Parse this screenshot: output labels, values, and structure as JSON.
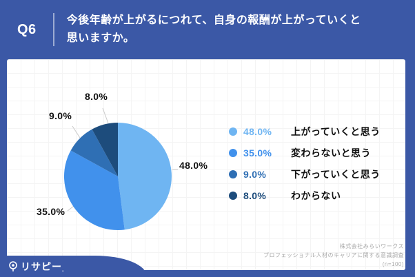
{
  "colors": {
    "frame_blue": "#3B58A6",
    "leader_line": "#c9c9c9",
    "credit_gray": "#a8a8a8"
  },
  "header": {
    "q_number": "Q6",
    "question_lines": [
      "今後年齢が上がるにつれて、自身の報酬が上がっていくと",
      "思いますか。"
    ]
  },
  "chart_data": {
    "type": "pie",
    "title": "今後年齢が上がるにつれて、自身の報酬が上がっていくと思いますか。",
    "categories": [
      "上がっていくと思う",
      "変わらないと思う",
      "下がっていくと思う",
      "わからない"
    ],
    "values": [
      48.0,
      35.0,
      9.0,
      8.0
    ],
    "unit": "%",
    "point_labels": [
      "48.0%",
      "35.0%",
      "9.0%",
      "8.0%"
    ],
    "colors": [
      "#6FB5F2",
      "#4191EC",
      "#2F6FB4",
      "#1D4C7C"
    ],
    "start_angle": "top",
    "direction": "clockwise",
    "legend_position": "right",
    "sample_size": "(n=100)"
  },
  "footer": {
    "logo_text": "リサピー",
    "logo_suffix": ".",
    "credit_lines": [
      "株式会社みらいワークス",
      "プロフェッショナル人材のキャリアに関する意識調査",
      "(n=100)"
    ]
  }
}
